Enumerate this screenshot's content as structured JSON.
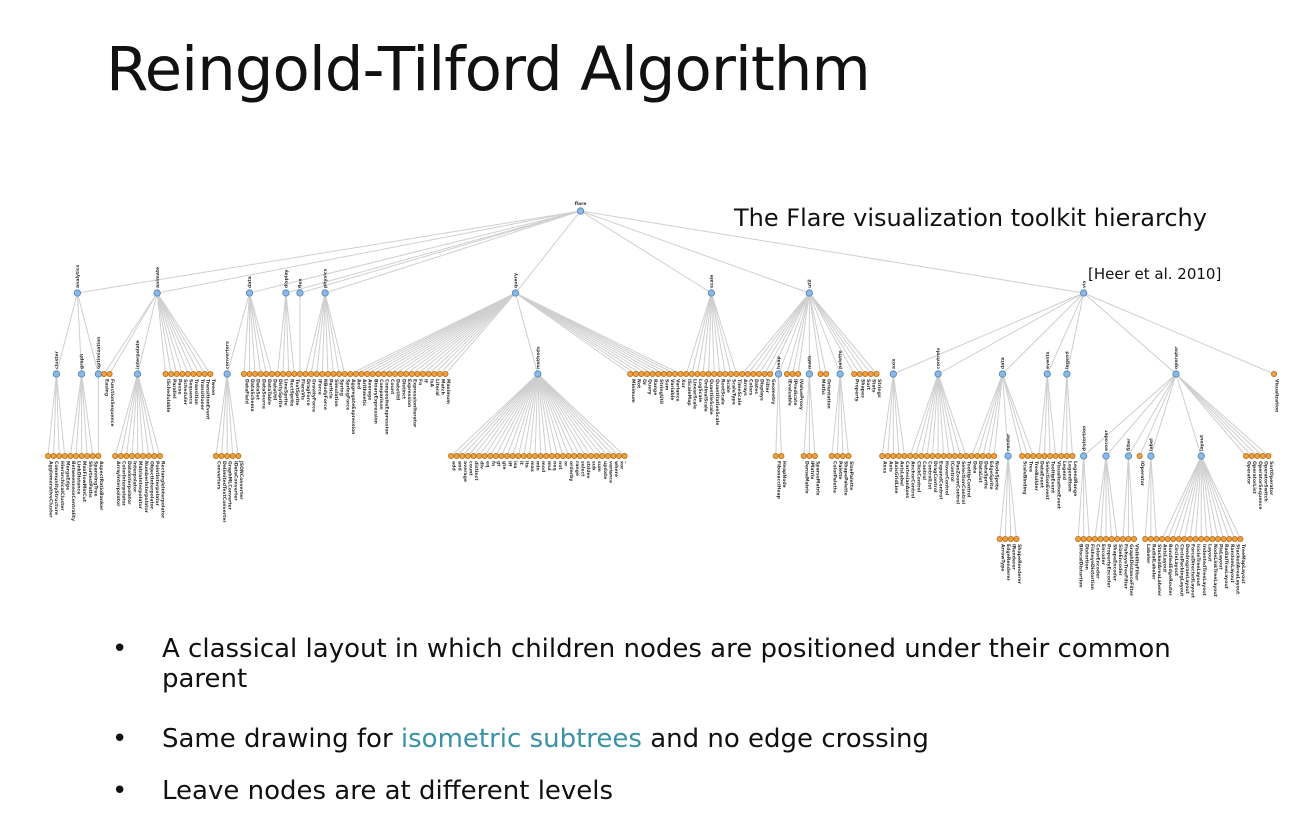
{
  "slide": {
    "title": "Reingold-Tilford Algorithm",
    "caption": "The Flare visualization toolkit hierarchy",
    "citation": "[Heer et al. 2010]"
  },
  "bullets": [
    {
      "text": "A classical layout in which children nodes are positioned under their common parent"
    },
    {
      "prefix": "Same drawing for ",
      "highlight": "isometric subtrees",
      "suffix": " and no edge crossing"
    },
    {
      "text": "Leave nodes are at different levels"
    }
  ],
  "colors": {
    "accent": "#3a92a8",
    "internal_node": "#8ab9e6",
    "leaf_node": "#f2a03d",
    "edge": "#cfcfcf"
  },
  "tree": {
    "name": "flare",
    "children": [
      {
        "name": "analytics",
        "children": [
          {
            "name": "cluster",
            "children": [
              "AgglomerativeCluster",
              "CommunityStructure",
              "HierarchicalCluster",
              "MergeEdge"
            ]
          },
          {
            "name": "graph",
            "children": [
              "BetweennessCentrality",
              "LinkDistance",
              "MaxFlowMinCut",
              "ShortestPaths",
              "SpanningTree"
            ]
          },
          {
            "name": "optimization",
            "children": [
              "AspectRatioBanker"
            ]
          }
        ]
      },
      {
        "name": "animate",
        "children": [
          "Easing",
          "FunctionSequence",
          {
            "name": "interpolate",
            "children": [
              "ArrayInterpolator",
              "ColorInterpolator",
              "DateInterpolator",
              "Interpolator",
              "MatrixInterpolator",
              "NumberInterpolator",
              "ObjectInterpolator",
              "PointInterpolator",
              "RectangleInterpolator"
            ]
          },
          "ISchedulable",
          "Parallel",
          "Pause",
          "Scheduler",
          "Sequence",
          "Transition",
          "Transitioner",
          "TransitionEvent",
          "Tween"
        ]
      },
      {
        "name": "data",
        "children": [
          {
            "name": "converters",
            "children": [
              "Converters",
              "DelimitedTextConverter",
              "GraphMLConverter",
              "IDataConverter",
              "JSONConverter"
            ]
          },
          "DataField",
          "DataSchema",
          "DataSet",
          "DataSource",
          "DataTable",
          "DataUtil"
        ]
      },
      {
        "name": "display",
        "children": [
          "DirtySprite",
          "LineSprite",
          "RectSprite",
          "TextSprite"
        ]
      },
      {
        "name": "flex",
        "children": [
          "FlareVis"
        ]
      },
      {
        "name": "physics",
        "children": [
          "DragForce",
          "GravityForce",
          "IForce",
          "NBodyForce",
          "Particle",
          "Simulation",
          "Spring",
          "SpringForce"
        ]
      },
      {
        "name": "query",
        "children": [
          "AggregateExpression",
          "And",
          "Arithmetic",
          "Average",
          "BinaryExpression",
          "Comparison",
          "CompositeExpression",
          "Count",
          "DateUtil",
          "Distinct",
          "Expression",
          "ExpressionIterator",
          "Fn",
          "If",
          "IsA",
          "Literal",
          "Match",
          "Maximum",
          {
            "name": "methods",
            "children": [
              "add",
              "and",
              "average",
              "count",
              "distinct",
              "div",
              "eq",
              "fn",
              "gt",
              "gte",
              "iff",
              "isa",
              "lt",
              "lte",
              "max",
              "min",
              "mod",
              "mul",
              "neq",
              "not",
              "or",
              "orderby",
              "range",
              "select",
              "stddev",
              "sub",
              "sum",
              "update",
              "variance",
              "where",
              "xor",
              "_"
            ]
          },
          "Minimum",
          "Not",
          "Or",
          "Query",
          "Range",
          "StringUtil",
          "Sum",
          "Variable",
          "Variance",
          "Xor"
        ]
      },
      {
        "name": "scale",
        "children": [
          "IScaleMap",
          "LinearScale",
          "LogScale",
          "OrdinalScale",
          "QuantileScale",
          "QuantitativeScale",
          "RootScale",
          "Scale",
          "ScaleType",
          "TimeScale"
        ]
      },
      {
        "name": "util",
        "children": [
          "Arrays",
          "Colors",
          "Dates",
          "Displays",
          "Filter",
          "Geometry",
          {
            "name": "heap",
            "children": [
              "FibonacciHeap",
              "HeapNode"
            ]
          },
          "IEvaluable",
          "IPredicate",
          "IValueProxy",
          {
            "name": "math",
            "children": [
              "DenseMatrix",
              "IMatrix",
              "SparseMatrix"
            ]
          },
          "Maths",
          "Orientation",
          {
            "name": "palette",
            "children": [
              "ColorPalette",
              "Palette",
              "ShapePalette",
              "SizePalette"
            ]
          },
          "Property",
          "Shapes",
          "Sort",
          "Stats",
          "Strings"
        ]
      },
      {
        "name": "vis",
        "children": [
          {
            "name": "axis",
            "children": [
              "Axes",
              "Axis",
              "AxisGridLine",
              "AxisLabel",
              "CartesianAxes"
            ]
          },
          {
            "name": "controls",
            "children": [
              "AnchorControl",
              "ClickControl",
              "Control",
              "ControlList",
              "DragControl",
              "ExpandControl",
              "HoverControl",
              "IControl",
              "PanZoomControl",
              "SelectionControl",
              "TooltipControl"
            ]
          },
          {
            "name": "data",
            "children": [
              "Data",
              "DataList",
              "DataSprite",
              "EdgeSprite",
              "NodeSprite",
              {
                "name": "render",
                "children": [
                  "ArrowType",
                  "EdgeRenderer",
                  "IRenderer",
                  "ShapeRenderer"
                ]
              },
              "ScaleBinding",
              "Tree",
              "TreeBuilder"
            ]
          },
          {
            "name": "events",
            "children": [
              "DataEvent",
              "SelectionEvent",
              "TooltipEvent",
              "VisualizationEvent"
            ]
          },
          {
            "name": "legend",
            "children": [
              "Legend",
              "LegendItem",
              "LegendRange"
            ]
          },
          {
            "name": "operator",
            "children": [
              {
                "name": "distortion",
                "children": [
                  "BifocalDistortion",
                  "Distortion",
                  "FisheyeDistortion"
                ]
              },
              {
                "name": "encoder",
                "children": [
                  "ColorEncoder",
                  "Encoder",
                  "PropertyEncoder",
                  "ShapeEncoder",
                  "SizeEncoder"
                ]
              },
              {
                "name": "filter",
                "children": [
                  "FisheyeTreeFilter",
                  "GraphDistanceFilter",
                  "VisibilityFilter"
                ]
              },
              "IOperator",
              {
                "name": "label",
                "children": [
                  "Labeler",
                  "RadialLabeler",
                  "StackedAreaLabeler"
                ]
              },
              {
                "name": "layout",
                "children": [
                  "AxisLayout",
                  "BundledEdgeRouter",
                  "CircleLayout",
                  "CirclePackingLayout",
                  "DendrogramLayout",
                  "ForceDirectedLayout",
                  "IcicleTreeLayout",
                  "IndentedTreeLayout",
                  "Layout",
                  "NodeLinkTreeLayout",
                  "PieLayout",
                  "RadialTreeLayout",
                  "RandomLayout",
                  "StackedAreaLayout",
                  "TreeMapLayout"
                ]
              },
              "Operator",
              "OperatorList",
              "OperatorSequence",
              "OperatorSwitch",
              "SortOperator"
            ]
          },
          "Visualization"
        ]
      }
    ]
  }
}
